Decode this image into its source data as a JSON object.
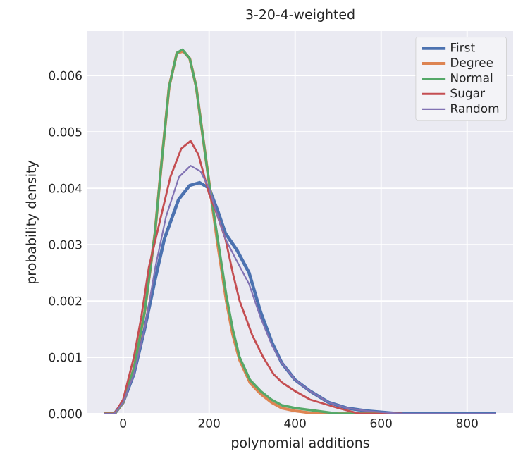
{
  "chart_data": {
    "type": "line",
    "title": "3-20-4-weighted",
    "xlabel": "polynomial additions",
    "ylabel": "probability density",
    "xlim": [
      -83,
      907
    ],
    "ylim": [
      0,
      0.00679
    ],
    "xticks": [
      0,
      200,
      400,
      600,
      800
    ],
    "yticks": [
      {
        "value": 0,
        "label": "0.000"
      },
      {
        "value": 0.001,
        "label": "0.001"
      },
      {
        "value": 0.002,
        "label": "0.002"
      },
      {
        "value": 0.003,
        "label": "0.003"
      },
      {
        "value": 0.004,
        "label": "0.004"
      },
      {
        "value": 0.005,
        "label": "0.005"
      },
      {
        "value": 0.006,
        "label": "0.006"
      }
    ],
    "grid": true,
    "legend": "top right",
    "marker": "none",
    "line_style": "solid",
    "series": [
      {
        "name": "First",
        "color": "#4c72b0",
        "x": [
          -45,
          -20,
          0,
          25,
          50,
          75,
          96,
          129,
          155,
          178,
          200,
          220,
          238,
          265,
          293,
          320,
          347,
          369,
          400,
          435,
          478,
          520,
          566,
          642,
          750,
          867
        ],
        "values": [
          0,
          0,
          0.0002,
          0.0007,
          0.0015,
          0.0024,
          0.0031,
          0.0038,
          0.00405,
          0.0041,
          0.004,
          0.0036,
          0.0032,
          0.0029,
          0.0025,
          0.0018,
          0.00125,
          0.0009,
          0.0006,
          0.0004,
          0.0002,
          0.0001,
          5e-05,
          0,
          0,
          0
        ]
      },
      {
        "name": "Degree",
        "color": "#dd8452",
        "x": [
          -45,
          -20,
          0,
          25,
          50,
          74,
          90,
          107,
          125,
          140,
          155,
          170,
          184,
          200,
          220,
          240,
          255,
          271,
          295,
          320,
          345,
          369,
          400,
          450,
          500,
          600
        ],
        "values": [
          0,
          0,
          0.0002,
          0.0008,
          0.0018,
          0.0032,
          0.0045,
          0.0058,
          0.0064,
          0.00643,
          0.0063,
          0.0058,
          0.005,
          0.0041,
          0.003,
          0.002,
          0.0014,
          0.00095,
          0.00055,
          0.00035,
          0.0002,
          0.0001,
          5e-05,
          0,
          0,
          0
        ]
      },
      {
        "name": "Normal",
        "color": "#55a868",
        "x": [
          -45,
          -20,
          0,
          25,
          50,
          74,
          90,
          107,
          125,
          138,
          155,
          170,
          184,
          200,
          220,
          240,
          255,
          271,
          295,
          320,
          345,
          369,
          400,
          450,
          500,
          600
        ],
        "values": [
          0,
          0,
          0.0002,
          0.0008,
          0.0018,
          0.0032,
          0.0045,
          0.0058,
          0.0064,
          0.00646,
          0.0063,
          0.0058,
          0.005,
          0.0041,
          0.0031,
          0.0021,
          0.0015,
          0.001,
          0.0006,
          0.0004,
          0.00025,
          0.00015,
          0.0001,
          5e-05,
          0,
          0
        ]
      },
      {
        "name": "Sugar",
        "color": "#c44e52",
        "x": [
          -45,
          -20,
          0,
          25,
          42,
          60,
          85,
          110,
          135,
          157,
          175,
          200,
          220,
          238,
          255,
          271,
          300,
          326,
          350,
          370,
          400,
          435,
          500,
          550,
          650
        ],
        "values": [
          0,
          0,
          0.00025,
          0.001,
          0.0017,
          0.0026,
          0.0034,
          0.0042,
          0.0047,
          0.00484,
          0.0046,
          0.0039,
          0.0035,
          0.0031,
          0.0025,
          0.002,
          0.0014,
          0.001,
          0.0007,
          0.00055,
          0.0004,
          0.00025,
          0.0001,
          0,
          0
        ]
      },
      {
        "name": "Random",
        "color": "#8172b3",
        "x": [
          -45,
          -20,
          0,
          25,
          50,
          75,
          100,
          130,
          157,
          180,
          200,
          220,
          238,
          265,
          293,
          320,
          347,
          369,
          400,
          435,
          478,
          520,
          566,
          642,
          750,
          867
        ],
        "values": [
          0,
          0,
          0.0002,
          0.0007,
          0.0015,
          0.0026,
          0.0035,
          0.0042,
          0.0044,
          0.0043,
          0.004,
          0.0035,
          0.0031,
          0.0027,
          0.0023,
          0.0017,
          0.0012,
          0.0009,
          0.0006,
          0.0004,
          0.0002,
          0.0001,
          5e-05,
          0,
          0,
          0
        ]
      }
    ]
  }
}
